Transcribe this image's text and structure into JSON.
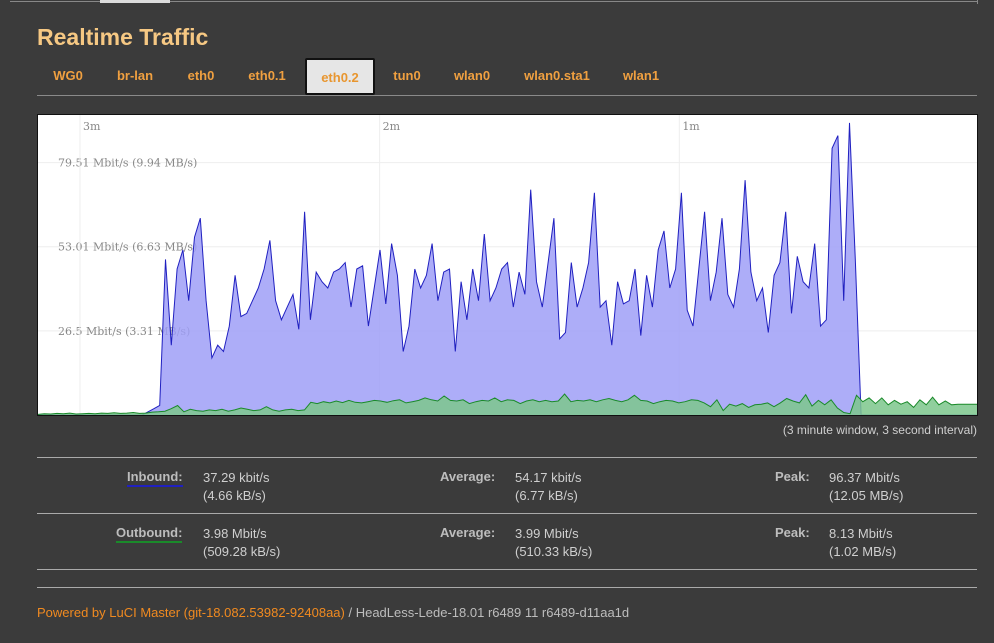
{
  "page": {
    "title": "Realtime Traffic"
  },
  "tabs": [
    {
      "label": "WG0",
      "active": false
    },
    {
      "label": "br-lan",
      "active": false
    },
    {
      "label": "eth0",
      "active": false
    },
    {
      "label": "eth0.1",
      "active": false
    },
    {
      "label": "eth0.2",
      "active": true
    },
    {
      "label": "tun0",
      "active": false
    },
    {
      "label": "wlan0",
      "active": false
    },
    {
      "label": "wlan0.sta1",
      "active": false
    },
    {
      "label": "wlan1",
      "active": false
    }
  ],
  "chart_data": {
    "type": "area",
    "time_labels": [
      "3m",
      "2m",
      "1m"
    ],
    "y_labels": [
      "79.51 Mbit/s (9.94 MB/s)",
      "53.01 Mbit/s (6.63 MB/s)",
      "26.5 Mbit/s (3.31 MB/s)"
    ],
    "y_ticks": [
      79.51,
      53.01,
      26.5
    ],
    "ylim": [
      0,
      94.5
    ],
    "x_unit": "seconds ago",
    "xlim": [
      188,
      0
    ],
    "grid": true,
    "colors": {
      "inbound": "#2020c0",
      "inbound_fill": "#9f9ff7",
      "outbound": "#1a8a2a",
      "outbound_fill": "#7cc78c"
    },
    "series": [
      {
        "name": "Inbound",
        "values": [
          0,
          0,
          0,
          0,
          0,
          0,
          0,
          0,
          0,
          0,
          0,
          0,
          0,
          0,
          0,
          0,
          0,
          0,
          0,
          1,
          2,
          3,
          49,
          22,
          46,
          52,
          36,
          56,
          62,
          36,
          18,
          22,
          20,
          28,
          44,
          31,
          32,
          36,
          40,
          46,
          55,
          36,
          30,
          34,
          38,
          27,
          64,
          30,
          45,
          42,
          40,
          45,
          46,
          48,
          34,
          46,
          47,
          28,
          40,
          52,
          35,
          54,
          44,
          20,
          28,
          46,
          40,
          44,
          54,
          36,
          45,
          46,
          20,
          42,
          30,
          46,
          36,
          57,
          36,
          40,
          46,
          48,
          34,
          45,
          38,
          71,
          42,
          34,
          48,
          62,
          24,
          26,
          48,
          34,
          40,
          48,
          70,
          34,
          36,
          22,
          42,
          35,
          36,
          46,
          25,
          44,
          34,
          52,
          58,
          40,
          46,
          70,
          33,
          28,
          46,
          64,
          36,
          45,
          62,
          38,
          34,
          46,
          74,
          45,
          36,
          40,
          26,
          44,
          48,
          64,
          32,
          50,
          42,
          40,
          54,
          28,
          30,
          84,
          88,
          36,
          92,
          49,
          0,
          0,
          0,
          0,
          0,
          0,
          0,
          0,
          0,
          0,
          0,
          0,
          0,
          0,
          0,
          0,
          0,
          0,
          0,
          0,
          0
        ]
      },
      {
        "name": "Outbound",
        "values": [
          0.2,
          0.4,
          0.3,
          0.5,
          0.4,
          0.6,
          0.3,
          0.4,
          0.5,
          0.4,
          0.6,
          0.5,
          0.7,
          0.5,
          0.6,
          0.8,
          0.5,
          0.6,
          0.9,
          1,
          1.2,
          2,
          3,
          1,
          1.8,
          1.4,
          1.2,
          1.6,
          1.4,
          1.8,
          1.2,
          1.6,
          2.2,
          1.8,
          1.4,
          1.6,
          2.6,
          1.6,
          1.2,
          1.6,
          1.8,
          1.4,
          1.6,
          4,
          3.6,
          4.2,
          3.8,
          4.4,
          3.9,
          4.6,
          4,
          3.8,
          4.2,
          4.6,
          4.4,
          4.0,
          4.5,
          4.8,
          3.8,
          4.2,
          4.6,
          5.4,
          4.8,
          4.4,
          6,
          4.6,
          4.4,
          4.8,
          3.6,
          4.2,
          4.6,
          4.4,
          5.4,
          4.2,
          4.8,
          4.6,
          3.6,
          4.4,
          4.8,
          4.2,
          4.6,
          4.2,
          4.4,
          6.6,
          4.2,
          4.6,
          4.4,
          4.8,
          4.2,
          4.8,
          5.2,
          4.6,
          4.2,
          4.8,
          6.2,
          4.6,
          4.4,
          3.6,
          4.2,
          4.6,
          4.4,
          3.8,
          4.2,
          4.8,
          4.6,
          3.8,
          2.6,
          4.8,
          1.4,
          3.4,
          2.8,
          3.6,
          2.4,
          3.2,
          3.4,
          3.8,
          2.6,
          3.8,
          5.2,
          4.4,
          3.8,
          6.4,
          2.8,
          4.6,
          3.2,
          4.8,
          2.2,
          0.8,
          0.4,
          6.2,
          4.2,
          5.4,
          3.6,
          5.4,
          3.2,
          4.6,
          3.4,
          4.2,
          2.4,
          4.8,
          3.2,
          5.6,
          3.2,
          4.4,
          3.2,
          3.4,
          3.4,
          3.4,
          3.4
        ]
      }
    ]
  },
  "graph_caption": "(3 minute window, 3 second interval)",
  "stats": {
    "inbound": {
      "label": "Inbound:",
      "current": "37.29 kbit/s",
      "current_bytes": "(4.66 kB/s)",
      "avg_label": "Average:",
      "avg": "54.17 kbit/s",
      "avg_bytes": "(6.77 kB/s)",
      "peak_label": "Peak:",
      "peak": "96.37 Mbit/s",
      "peak_bytes": "(12.05 MB/s)"
    },
    "outbound": {
      "label": "Outbound:",
      "current": "3.98 Mbit/s",
      "current_bytes": "(509.28 kB/s)",
      "avg_label": "Average:",
      "avg": "3.99 Mbit/s",
      "avg_bytes": "(510.33 kB/s)",
      "peak_label": "Peak:",
      "peak": "8.13 Mbit/s",
      "peak_bytes": "(1.02 MB/s)"
    }
  },
  "footer": {
    "link": "Powered by LuCI Master (git-18.082.53982-92408aa)",
    "text": " / HeadLess-Lede-18.01 r6489 11 r6489-d11aa1d"
  }
}
